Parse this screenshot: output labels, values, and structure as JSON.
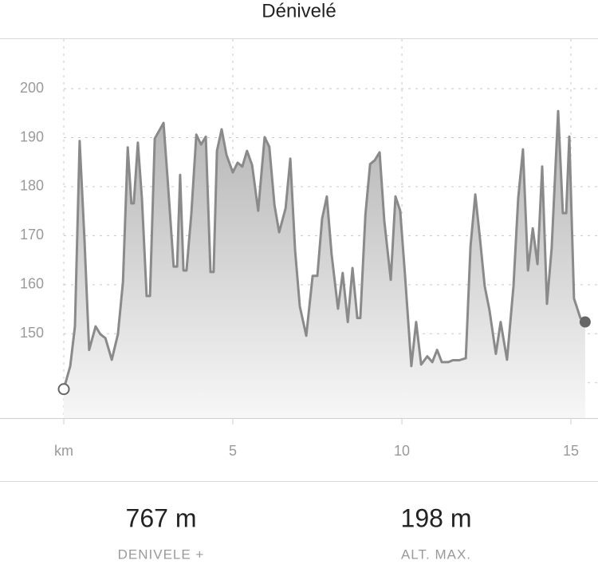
{
  "chart_data": {
    "type": "area",
    "title": "Dénivelé",
    "x": [
      0,
      0.19,
      0.33,
      0.47,
      0.61,
      0.75,
      0.94,
      1.08,
      1.23,
      1.42,
      1.6,
      1.75,
      1.89,
      2.0,
      2.07,
      2.19,
      2.31,
      2.45,
      2.55,
      2.69,
      2.95,
      3.07,
      3.25,
      3.35,
      3.44,
      3.54,
      3.63,
      3.77,
      3.92,
      4.06,
      4.2,
      4.34,
      4.43,
      4.53,
      4.67,
      4.81,
      5.0,
      5.14,
      5.28,
      5.42,
      5.57,
      5.75,
      5.94,
      6.08,
      6.23,
      6.37,
      6.56,
      6.7,
      6.84,
      6.98,
      7.17,
      7.36,
      7.5,
      7.64,
      7.78,
      7.92,
      8.11,
      8.25,
      8.4,
      8.54,
      8.68,
      8.77,
      8.92,
      9.06,
      9.2,
      9.34,
      9.48,
      9.67,
      9.81,
      9.95,
      10.09,
      10.28,
      10.42,
      10.57,
      10.75,
      10.9,
      11.04,
      11.18,
      11.37,
      11.51,
      11.7,
      11.89,
      12.03,
      12.17,
      12.31,
      12.45,
      12.59,
      12.78,
      12.92,
      13.11,
      13.3,
      13.44,
      13.58,
      13.73,
      13.87,
      14.01,
      14.15,
      14.29,
      14.43,
      14.62,
      14.76,
      14.86,
      14.95,
      15.09,
      15.28,
      15.42
    ],
    "values": [
      138.7,
      143.4,
      151.5,
      189.3,
      169.4,
      146.7,
      151.5,
      149.9,
      149.1,
      144.7,
      149.9,
      160.5,
      188.0,
      176.6,
      176.6,
      189.0,
      177.6,
      157.7,
      157.7,
      189.8,
      193.0,
      181.6,
      163.7,
      163.7,
      182.4,
      162.9,
      162.9,
      174.3,
      190.6,
      188.6,
      190.2,
      162.6,
      162.6,
      187.3,
      191.7,
      186.5,
      182.9,
      184.9,
      184.1,
      187.3,
      184.4,
      175.1,
      190.1,
      188.1,
      176.3,
      170.7,
      175.6,
      185.7,
      167.0,
      155.6,
      149.6,
      161.8,
      161.8,
      173.5,
      178.0,
      166.2,
      155.1,
      162.4,
      152.4,
      163.4,
      153.2,
      153.2,
      174.3,
      184.6,
      185.4,
      187.0,
      173.0,
      161.0,
      178.0,
      175.1,
      162.1,
      143.4,
      152.4,
      143.7,
      145.4,
      144.2,
      146.7,
      144.2,
      144.2,
      144.6,
      144.6,
      145.0,
      167.8,
      178.4,
      169.4,
      159.7,
      154.8,
      145.9,
      152.4,
      144.7,
      159.7,
      177.6,
      187.6,
      162.9,
      171.5,
      164.2,
      184.1,
      156.1,
      167.5,
      195.4,
      174.6,
      174.6,
      190.2,
      157.2,
      153.2,
      152.4
    ],
    "color": "#8a8a8a",
    "xlim": [
      -1.887,
      15.8
    ],
    "ylim": [
      132.8,
      210.1
    ],
    "xticks": [
      {
        "value": 0,
        "label": "km"
      },
      5,
      10,
      15
    ],
    "yticks": [
      {
        "value": 140,
        "label": null
      },
      150,
      160,
      170,
      180,
      190,
      200
    ],
    "grid": true
  },
  "stats": [
    {
      "value": "767 m",
      "label": "DENIVELE +"
    },
    {
      "value": "198 m",
      "label": "ALT. MAX."
    }
  ]
}
